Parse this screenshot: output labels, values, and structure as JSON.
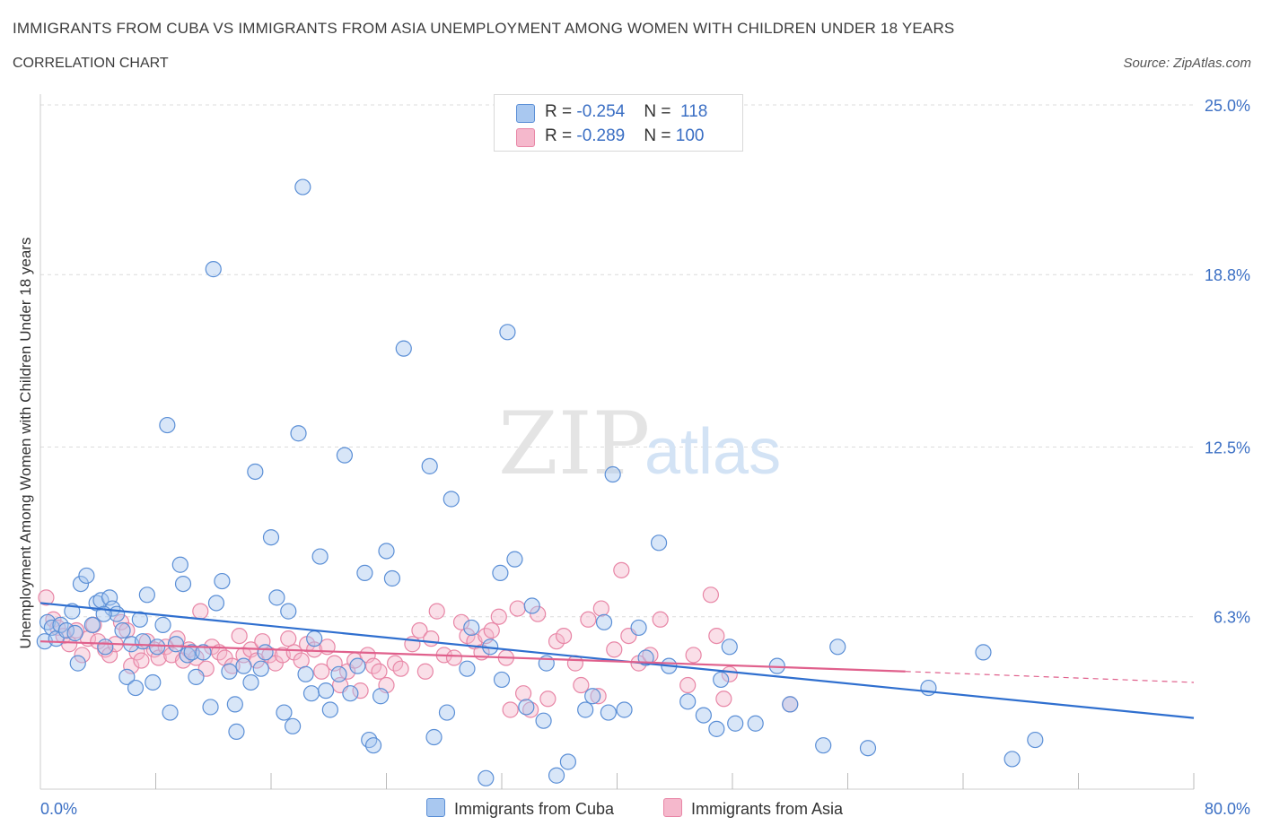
{
  "title": "IMMIGRANTS FROM CUBA VS IMMIGRANTS FROM ASIA UNEMPLOYMENT AMONG WOMEN WITH CHILDREN UNDER 18 YEARS",
  "subtitle": "CORRELATION CHART",
  "source": "Source: ZipAtlas.com",
  "watermark": {
    "zip": "ZIP",
    "atlas": "atlas"
  },
  "legend": [
    {
      "r_label": "R = ",
      "r_value": "-0.254",
      "n_label": "N = ",
      "n_value": "118",
      "color": "#a9c8f0"
    },
    {
      "r_label": "R = ",
      "r_value": "-0.289",
      "n_label": "N = ",
      "n_value": "100",
      "color": "#f5b8cc"
    }
  ],
  "colors": {
    "cuba_fill": "#a9c8f0",
    "cuba_stroke": "#5b8fd6",
    "cuba_line": "#2f6fcf",
    "asia_fill": "#f5b8cc",
    "asia_stroke": "#e886a6",
    "asia_line": "#e0608c",
    "tick_text": "#3b6fc4",
    "grid": "#dcdcdc"
  },
  "chart_data": {
    "type": "scatter",
    "xlabel": "",
    "ylabel": "Unemployment Among Women with Children Under 18 years",
    "xlim": [
      0,
      80
    ],
    "ylim": [
      0,
      25
    ],
    "x_tick_labels": [
      {
        "value": 0,
        "label": "0.0%"
      },
      {
        "value": 80,
        "label": "80.0%"
      }
    ],
    "y_tick_labels": [
      {
        "value": 6.3,
        "label": "6.3%"
      },
      {
        "value": 12.5,
        "label": "12.5%"
      },
      {
        "value": 18.8,
        "label": "18.8%"
      },
      {
        "value": 25.0,
        "label": "25.0%"
      }
    ],
    "grid": "horizontal dashed",
    "legend_position": "top-center",
    "series": [
      {
        "name": "Immigrants from Cuba",
        "trend": {
          "x": [
            0,
            80
          ],
          "y": [
            6.8,
            2.6
          ]
        },
        "points": [
          [
            0.3,
            5.4
          ],
          [
            0.5,
            6.1
          ],
          [
            0.8,
            5.9
          ],
          [
            1.1,
            5.5
          ],
          [
            1.4,
            6.0
          ],
          [
            1.8,
            5.8
          ],
          [
            2.2,
            6.5
          ],
          [
            2.4,
            5.7
          ],
          [
            2.6,
            4.6
          ],
          [
            2.8,
            7.5
          ],
          [
            3.2,
            7.8
          ],
          [
            3.6,
            6.0
          ],
          [
            3.9,
            6.8
          ],
          [
            4.2,
            6.9
          ],
          [
            4.5,
            5.2
          ],
          [
            4.8,
            7.0
          ],
          [
            5.0,
            6.6
          ],
          [
            5.3,
            6.4
          ],
          [
            5.7,
            5.8
          ],
          [
            6.0,
            4.1
          ],
          [
            6.3,
            5.3
          ],
          [
            6.6,
            3.7
          ],
          [
            6.9,
            6.2
          ],
          [
            7.1,
            5.4
          ],
          [
            7.4,
            7.1
          ],
          [
            7.8,
            3.9
          ],
          [
            8.1,
            5.2
          ],
          [
            8.5,
            6.0
          ],
          [
            8.8,
            13.3
          ],
          [
            9.0,
            2.8
          ],
          [
            9.4,
            5.3
          ],
          [
            9.7,
            8.2
          ],
          [
            9.9,
            7.5
          ],
          [
            10.2,
            4.9
          ],
          [
            10.5,
            5.0
          ],
          [
            10.8,
            4.1
          ],
          [
            11.3,
            5.0
          ],
          [
            11.8,
            3.0
          ],
          [
            12.0,
            19.0
          ],
          [
            12.2,
            6.8
          ],
          [
            12.6,
            7.6
          ],
          [
            13.1,
            4.3
          ],
          [
            13.5,
            3.1
          ],
          [
            13.6,
            2.1
          ],
          [
            14.1,
            4.5
          ],
          [
            14.6,
            3.9
          ],
          [
            14.9,
            11.6
          ],
          [
            15.3,
            4.4
          ],
          [
            15.6,
            5.0
          ],
          [
            16.0,
            9.2
          ],
          [
            16.4,
            7.0
          ],
          [
            16.9,
            2.8
          ],
          [
            17.2,
            6.5
          ],
          [
            17.5,
            2.3
          ],
          [
            17.9,
            13.0
          ],
          [
            18.2,
            22.0
          ],
          [
            18.4,
            4.2
          ],
          [
            18.8,
            3.5
          ],
          [
            19.0,
            5.5
          ],
          [
            19.4,
            8.5
          ],
          [
            19.8,
            3.6
          ],
          [
            20.1,
            2.9
          ],
          [
            20.7,
            4.2
          ],
          [
            21.1,
            12.2
          ],
          [
            21.5,
            3.5
          ],
          [
            22.0,
            4.5
          ],
          [
            22.5,
            7.9
          ],
          [
            22.8,
            1.8
          ],
          [
            23.1,
            1.6
          ],
          [
            23.6,
            3.4
          ],
          [
            24.0,
            8.7
          ],
          [
            24.4,
            7.7
          ],
          [
            25.2,
            16.1
          ],
          [
            27.0,
            11.8
          ],
          [
            27.3,
            1.9
          ],
          [
            28.2,
            2.8
          ],
          [
            28.5,
            10.6
          ],
          [
            29.6,
            4.4
          ],
          [
            29.9,
            5.9
          ],
          [
            30.9,
            0.4
          ],
          [
            31.2,
            5.2
          ],
          [
            31.9,
            7.9
          ],
          [
            32.0,
            4.0
          ],
          [
            32.4,
            16.7
          ],
          [
            32.9,
            8.4
          ],
          [
            33.7,
            3.0
          ],
          [
            34.1,
            6.7
          ],
          [
            34.9,
            2.5
          ],
          [
            35.1,
            4.6
          ],
          [
            35.8,
            0.5
          ],
          [
            36.6,
            1.0
          ],
          [
            37.8,
            2.9
          ],
          [
            38.3,
            3.4
          ],
          [
            39.1,
            6.1
          ],
          [
            39.4,
            2.8
          ],
          [
            39.7,
            11.5
          ],
          [
            40.5,
            2.9
          ],
          [
            41.5,
            5.9
          ],
          [
            42.0,
            4.8
          ],
          [
            42.9,
            9.0
          ],
          [
            43.6,
            4.5
          ],
          [
            44.9,
            3.2
          ],
          [
            46.0,
            2.7
          ],
          [
            46.9,
            2.2
          ],
          [
            47.2,
            4.0
          ],
          [
            47.8,
            5.2
          ],
          [
            48.2,
            2.4
          ],
          [
            49.6,
            2.4
          ],
          [
            51.1,
            4.5
          ],
          [
            52.0,
            3.1
          ],
          [
            54.3,
            1.6
          ],
          [
            55.3,
            5.2
          ],
          [
            57.4,
            1.5
          ],
          [
            61.6,
            3.7
          ],
          [
            65.4,
            5.0
          ],
          [
            67.4,
            1.1
          ],
          [
            69.0,
            1.8
          ],
          [
            4.4,
            6.4
          ]
        ]
      },
      {
        "name": "Immigrants from Asia",
        "trend": {
          "x": [
            0,
            60
          ],
          "y": [
            5.4,
            4.3
          ]
        },
        "trend_dashed": {
          "x": [
            60,
            80
          ],
          "y": [
            4.3,
            3.9
          ]
        },
        "points": [
          [
            0.4,
            7.0
          ],
          [
            0.9,
            6.2
          ],
          [
            1.2,
            5.9
          ],
          [
            1.6,
            5.6
          ],
          [
            2.0,
            5.3
          ],
          [
            2.5,
            5.8
          ],
          [
            2.9,
            4.9
          ],
          [
            3.3,
            5.5
          ],
          [
            3.7,
            6.0
          ],
          [
            4.0,
            5.4
          ],
          [
            4.5,
            5.1
          ],
          [
            4.8,
            4.9
          ],
          [
            5.2,
            5.3
          ],
          [
            5.6,
            6.1
          ],
          [
            6.0,
            5.8
          ],
          [
            6.3,
            4.5
          ],
          [
            6.7,
            5.0
          ],
          [
            7.0,
            4.7
          ],
          [
            7.4,
            5.4
          ],
          [
            7.9,
            5.1
          ],
          [
            8.2,
            4.8
          ],
          [
            8.7,
            5.2
          ],
          [
            9.1,
            4.9
          ],
          [
            9.5,
            5.5
          ],
          [
            9.9,
            4.7
          ],
          [
            10.3,
            5.1
          ],
          [
            10.8,
            4.8
          ],
          [
            11.1,
            6.5
          ],
          [
            11.5,
            4.4
          ],
          [
            11.9,
            5.2
          ],
          [
            12.4,
            5.0
          ],
          [
            12.8,
            4.8
          ],
          [
            13.3,
            4.5
          ],
          [
            13.8,
            5.6
          ],
          [
            14.1,
            4.9
          ],
          [
            14.6,
            5.1
          ],
          [
            15.0,
            4.7
          ],
          [
            15.4,
            5.4
          ],
          [
            15.9,
            4.9
          ],
          [
            16.3,
            4.6
          ],
          [
            16.8,
            4.9
          ],
          [
            17.2,
            5.5
          ],
          [
            17.6,
            5.0
          ],
          [
            18.1,
            4.7
          ],
          [
            18.5,
            5.3
          ],
          [
            19.0,
            5.1
          ],
          [
            19.5,
            4.3
          ],
          [
            19.9,
            5.2
          ],
          [
            20.4,
            4.6
          ],
          [
            20.8,
            3.8
          ],
          [
            21.3,
            4.3
          ],
          [
            21.8,
            4.7
          ],
          [
            22.2,
            3.6
          ],
          [
            22.7,
            4.9
          ],
          [
            23.1,
            4.5
          ],
          [
            23.5,
            4.3
          ],
          [
            24.0,
            3.8
          ],
          [
            24.6,
            4.6
          ],
          [
            25.0,
            4.4
          ],
          [
            25.8,
            5.3
          ],
          [
            26.3,
            5.8
          ],
          [
            26.7,
            4.3
          ],
          [
            27.1,
            5.5
          ],
          [
            27.5,
            6.5
          ],
          [
            28.0,
            4.9
          ],
          [
            28.7,
            4.8
          ],
          [
            29.2,
            6.1
          ],
          [
            29.6,
            5.6
          ],
          [
            30.1,
            5.4
          ],
          [
            30.6,
            5.0
          ],
          [
            30.9,
            5.6
          ],
          [
            31.3,
            5.8
          ],
          [
            31.8,
            6.3
          ],
          [
            32.3,
            4.8
          ],
          [
            32.6,
            2.9
          ],
          [
            33.1,
            6.6
          ],
          [
            33.5,
            3.5
          ],
          [
            34.0,
            2.9
          ],
          [
            34.5,
            6.4
          ],
          [
            35.2,
            3.3
          ],
          [
            35.8,
            5.4
          ],
          [
            36.3,
            5.6
          ],
          [
            37.1,
            4.6
          ],
          [
            37.5,
            3.8
          ],
          [
            38.0,
            6.2
          ],
          [
            38.7,
            3.4
          ],
          [
            38.9,
            6.6
          ],
          [
            39.8,
            5.1
          ],
          [
            40.3,
            8.0
          ],
          [
            40.8,
            5.6
          ],
          [
            41.5,
            4.6
          ],
          [
            42.3,
            4.9
          ],
          [
            43.0,
            6.2
          ],
          [
            44.9,
            3.8
          ],
          [
            45.3,
            4.9
          ],
          [
            46.5,
            7.1
          ],
          [
            46.9,
            5.6
          ],
          [
            47.4,
            3.3
          ],
          [
            47.8,
            4.2
          ],
          [
            52.0,
            3.1
          ]
        ]
      }
    ]
  }
}
